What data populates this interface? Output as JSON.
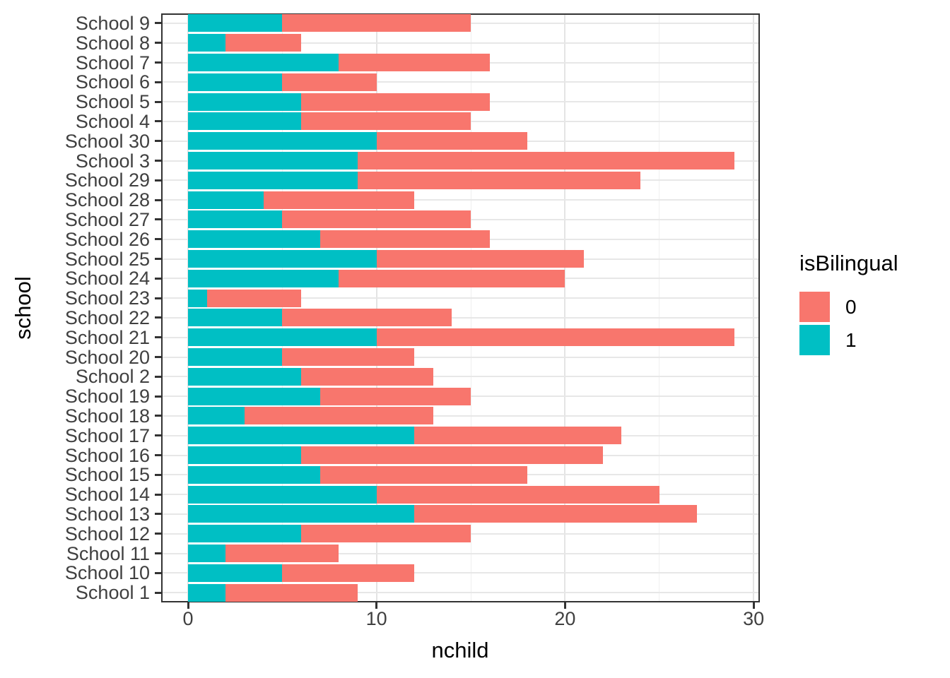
{
  "chart_data": {
    "type": "bar",
    "orientation": "horizontal",
    "stacked": true,
    "title": "",
    "xlabel": "nchild",
    "ylabel": "school",
    "legend_title": "isBilingual",
    "legend_position": "right",
    "xlim": [
      0,
      30
    ],
    "x_major_ticks": [
      0,
      10,
      20,
      30
    ],
    "x_minor_ticks": [
      5,
      15,
      25
    ],
    "grid": true,
    "categories_top_to_bottom": [
      "School 9",
      "School 8",
      "School 7",
      "School 6",
      "School 5",
      "School 4",
      "School 30",
      "School 3",
      "School 29",
      "School 28",
      "School 27",
      "School 26",
      "School 25",
      "School 24",
      "School 23",
      "School 22",
      "School 21",
      "School 20",
      "School 2",
      "School 19",
      "School 18",
      "School 17",
      "School 16",
      "School 15",
      "School 14",
      "School 13",
      "School 12",
      "School 11",
      "School 10",
      "School 1"
    ],
    "stack_order_from_axis": [
      "1",
      "0"
    ],
    "series": [
      {
        "name": "0",
        "color": "#F8766D",
        "values": [
          10,
          4,
          8,
          5,
          10,
          9,
          8,
          20,
          15,
          8,
          10,
          9,
          11,
          12,
          5,
          9,
          19,
          7,
          7,
          8,
          10,
          11,
          16,
          11,
          15,
          15,
          9,
          6,
          7,
          7
        ]
      },
      {
        "name": "1",
        "color": "#00BFC4",
        "values": [
          5,
          2,
          8,
          5,
          6,
          6,
          10,
          9,
          9,
          4,
          5,
          7,
          10,
          8,
          1,
          5,
          10,
          5,
          6,
          7,
          3,
          12,
          6,
          7,
          10,
          12,
          6,
          2,
          5,
          2
        ]
      }
    ],
    "totals": [
      15,
      6,
      16,
      10,
      16,
      15,
      18,
      29,
      24,
      12,
      15,
      16,
      21,
      20,
      6,
      14,
      29,
      12,
      13,
      15,
      13,
      23,
      22,
      18,
      25,
      27,
      15,
      8,
      12,
      9
    ]
  },
  "theme": {
    "panel_border_color": "#333333",
    "major_grid_color": "#e4e4e4",
    "minor_grid_color": "#efefef",
    "tick_color": "#333333",
    "axis_text_color": "#404040",
    "title_color": "#000000",
    "background": "#ffffff"
  }
}
